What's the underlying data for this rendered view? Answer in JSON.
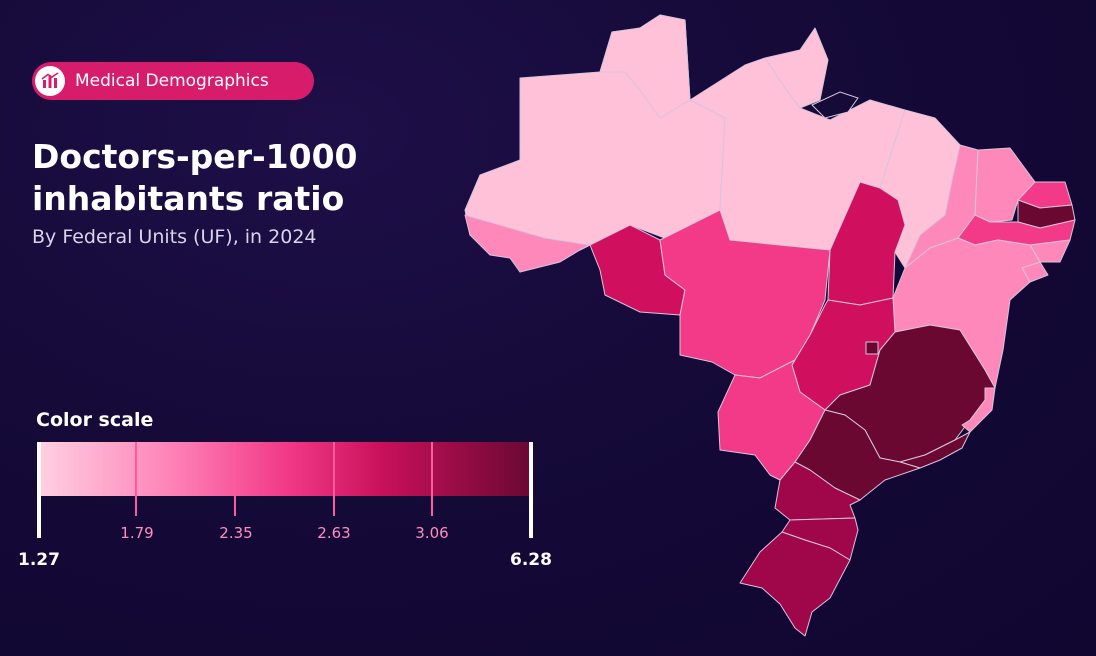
{
  "badge": {
    "label": "Medical Demographics",
    "icon": "bar-chart-icon"
  },
  "title": "Doctors-per-1000 inhabitants ratio",
  "subtitle": "By Federal Units (UF), in 2024",
  "scale": {
    "title": "Color scale",
    "min": "1.27",
    "max": "6.28",
    "ticks": [
      "1.79",
      "2.35",
      "2.63",
      "3.06"
    ],
    "colors": [
      "#ffc1d8",
      "#ff88bb",
      "#f23a88",
      "#d0105e",
      "#a0064a",
      "#6a0832"
    ]
  },
  "map": {
    "states": [
      {
        "name": "AM",
        "class": 0
      },
      {
        "name": "RR",
        "class": 0
      },
      {
        "name": "PA",
        "class": 0
      },
      {
        "name": "AP",
        "class": 0
      },
      {
        "name": "MA",
        "class": 0
      },
      {
        "name": "AC",
        "class": 1
      },
      {
        "name": "PI",
        "class": 1
      },
      {
        "name": "CE",
        "class": 1
      },
      {
        "name": "BA",
        "class": 1
      },
      {
        "name": "AL",
        "class": 1
      },
      {
        "name": "SE",
        "class": 1
      },
      {
        "name": "ES",
        "class": 1
      },
      {
        "name": "MT",
        "class": 2
      },
      {
        "name": "MS",
        "class": 2
      },
      {
        "name": "RN",
        "class": 2
      },
      {
        "name": "PE",
        "class": 2
      },
      {
        "name": "RO",
        "class": 3
      },
      {
        "name": "TO",
        "class": 3
      },
      {
        "name": "GO",
        "class": 3
      },
      {
        "name": "PR",
        "class": 4
      },
      {
        "name": "SC",
        "class": 4
      },
      {
        "name": "RS",
        "class": 4
      },
      {
        "name": "MG",
        "class": 5
      },
      {
        "name": "SP",
        "class": 5
      },
      {
        "name": "RJ",
        "class": 5
      },
      {
        "name": "PB",
        "class": 5
      },
      {
        "name": "DF",
        "class": 5
      }
    ]
  }
}
